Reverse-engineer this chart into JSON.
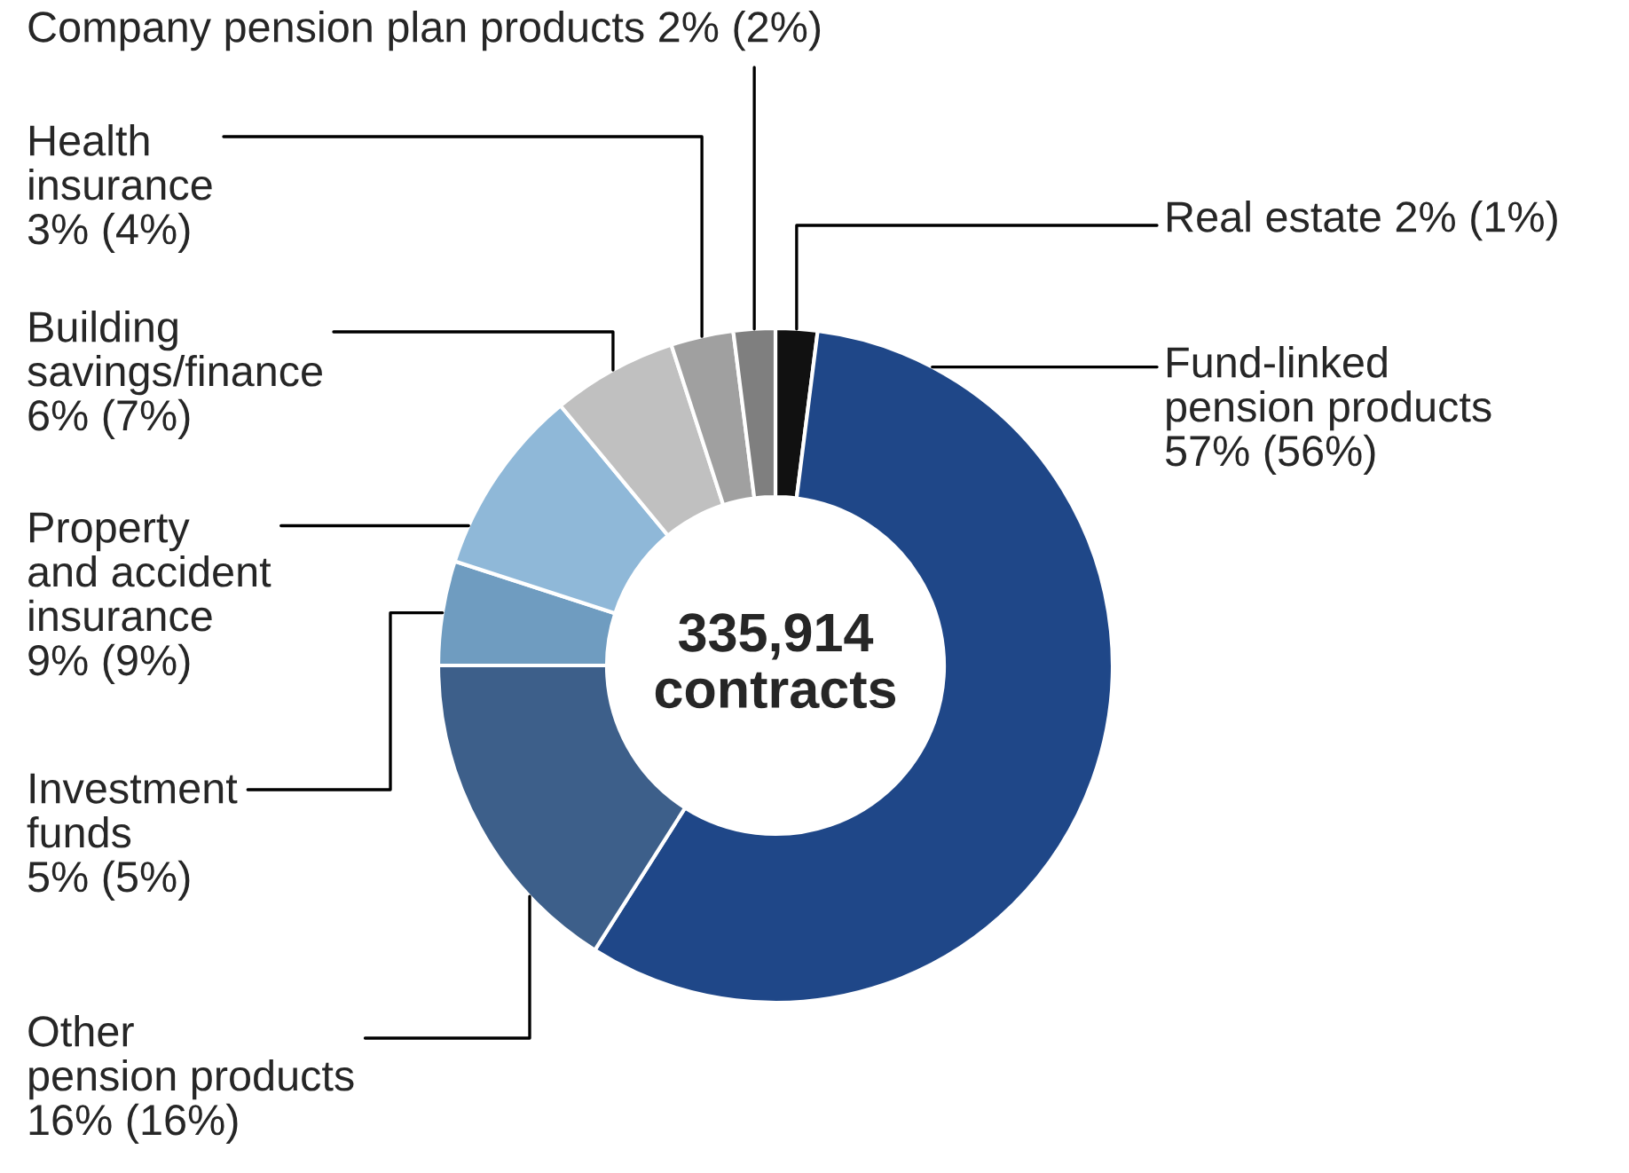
{
  "chart_data": {
    "type": "donut",
    "categories": [
      "Real estate",
      "Fund-linked\npension products",
      "Other\npension products",
      "Investment\nfunds",
      "Property\nand accident\ninsurance",
      "Building\nsavings/finance",
      "Health\ninsurance",
      "Company pension plan products"
    ],
    "values": [
      2,
      57,
      16,
      5,
      9,
      6,
      3,
      2
    ],
    "colors": [
      "#111111",
      "#1f4788",
      "#3d5f8a",
      "#6f9cc0",
      "#8fb8d8",
      "#c0c0c0",
      "#a0a0a0",
      "#7f7f7f"
    ],
    "value_labels": [
      "2% (1%)",
      "57% (56%)",
      "16% (16%)",
      "5% (5%)",
      "9% (9%)",
      "6% (7%)",
      "3% (4%)",
      "2% (2%)"
    ],
    "annotations": [
      "335,914\ncontracts"
    ]
  }
}
